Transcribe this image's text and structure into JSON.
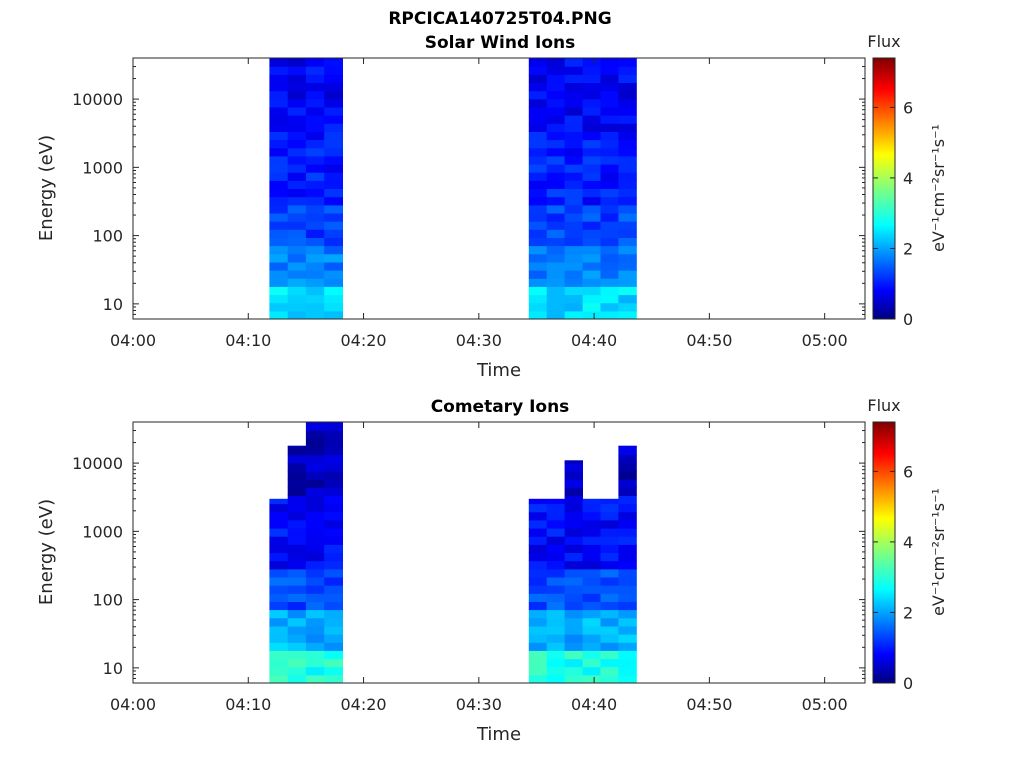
{
  "figure_title": "RPCICA140725T04.PNG",
  "chart_data": [
    {
      "type": "heatmap",
      "title": "Solar Wind Ions",
      "xlabel": "Time",
      "ylabel": "Energy (eV)",
      "yscale": "log",
      "ylim": [
        6,
        40000
      ],
      "x_ticks": [
        "04:00",
        "04:10",
        "04:20",
        "04:30",
        "04:40",
        "04:50",
        "05:00"
      ],
      "y_ticks": [
        "10",
        "100",
        "1000",
        "10000"
      ],
      "colorbar": {
        "label": "Flux",
        "units": "eV⁻¹cm⁻²sr⁻¹s⁻¹",
        "range": [
          0,
          7.4
        ],
        "ticks": [
          "0",
          "2",
          "4",
          "6"
        ],
        "colormap": "jet"
      },
      "data_blocks": [
        {
          "start": "04:11:50",
          "end": "04:18:10"
        },
        {
          "start": "04:34:20",
          "end": "04:43:40"
        }
      ],
      "grid": false
    },
    {
      "type": "heatmap",
      "title": "Cometary Ions",
      "xlabel": "Time",
      "ylabel": "Energy (eV)",
      "yscale": "log",
      "ylim": [
        6,
        40000
      ],
      "x_ticks": [
        "04:00",
        "04:10",
        "04:20",
        "04:30",
        "04:40",
        "04:50",
        "05:00"
      ],
      "y_ticks": [
        "10",
        "100",
        "1000",
        "10000"
      ],
      "colorbar": {
        "label": "Flux",
        "units": "eV⁻¹cm⁻²sr⁻¹s⁻¹",
        "range": [
          0,
          7.4
        ],
        "ticks": [
          "0",
          "2",
          "4",
          "6"
        ],
        "colormap": "jet"
      },
      "data_blocks": [
        {
          "start": "04:11:50",
          "end": "04:18:10"
        },
        {
          "start": "04:34:20",
          "end": "04:43:40"
        }
      ],
      "grid": false
    }
  ]
}
